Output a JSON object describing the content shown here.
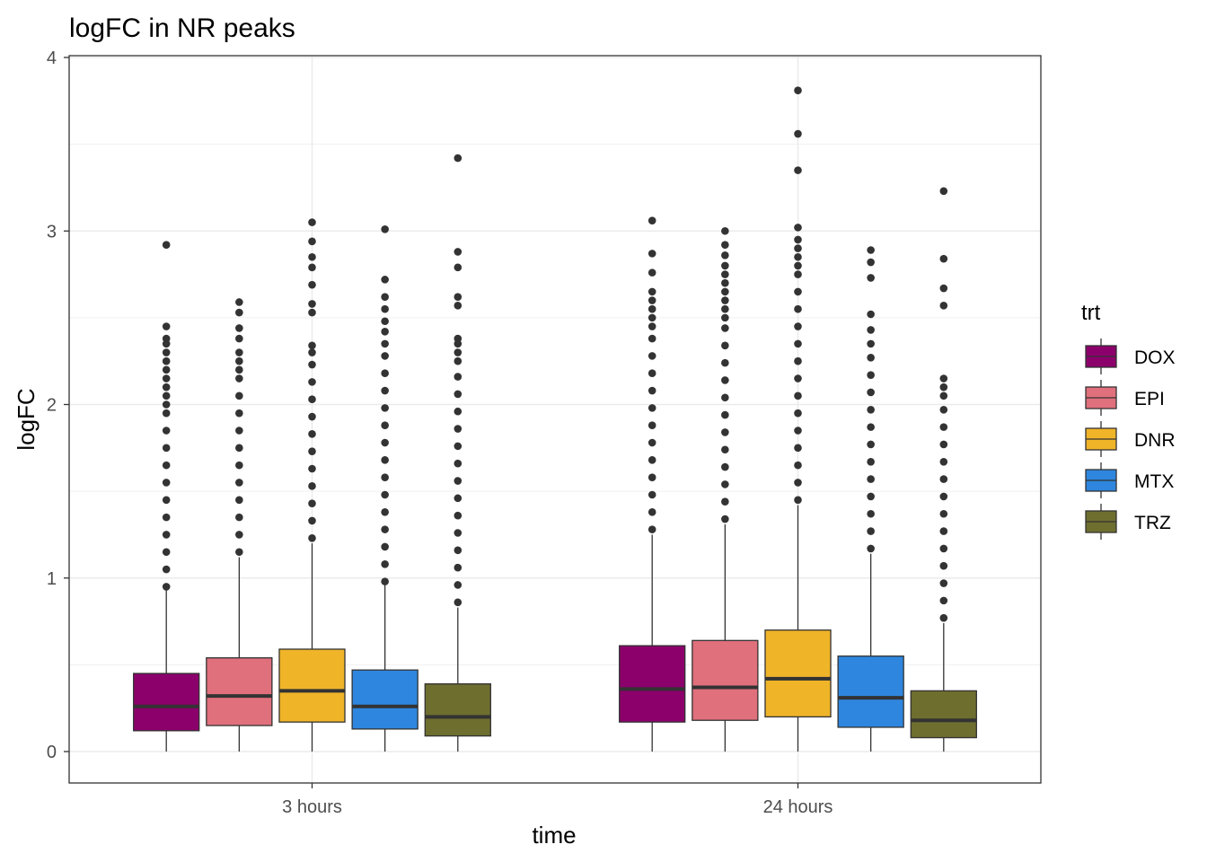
{
  "chart_data": {
    "type": "boxplot",
    "title": "logFC in NR peaks",
    "xlabel": "time",
    "ylabel": "logFC",
    "ylim": [
      -0.18,
      4
    ],
    "y_ticks": [
      0,
      1,
      2,
      3,
      4
    ],
    "grid": true,
    "legend": {
      "title": "trt",
      "position": "right"
    },
    "categories": [
      "3 hours",
      "24 hours"
    ],
    "series": [
      {
        "name": "DOX",
        "color": "#8B006B",
        "boxes": [
          {
            "whisker_low": 0,
            "q1": 0.12,
            "median": 0.26,
            "q3": 0.45,
            "whisker_high": 0.93,
            "outliers": [
              0.95,
              1.05,
              1.15,
              1.25,
              1.35,
              1.45,
              1.55,
              1.65,
              1.75,
              1.85,
              1.95,
              2.0,
              2.05,
              2.1,
              2.15,
              2.2,
              2.25,
              2.3,
              2.35,
              2.38,
              2.45,
              2.92
            ]
          },
          {
            "whisker_low": 0,
            "q1": 0.17,
            "median": 0.36,
            "q3": 0.61,
            "whisker_high": 1.25,
            "outliers": [
              1.28,
              1.38,
              1.48,
              1.58,
              1.68,
              1.78,
              1.88,
              1.98,
              2.08,
              2.18,
              2.28,
              2.38,
              2.45,
              2.5,
              2.55,
              2.6,
              2.65,
              2.76,
              2.87,
              3.06
            ]
          }
        ]
      },
      {
        "name": "EPI",
        "color": "#E0707C",
        "boxes": [
          {
            "whisker_low": 0,
            "q1": 0.15,
            "median": 0.32,
            "q3": 0.54,
            "whisker_high": 1.12,
            "outliers": [
              1.15,
              1.25,
              1.35,
              1.45,
              1.55,
              1.65,
              1.75,
              1.85,
              1.95,
              2.05,
              2.15,
              2.2,
              2.25,
              2.3,
              2.38,
              2.44,
              2.53,
              2.59
            ]
          },
          {
            "whisker_low": 0,
            "q1": 0.18,
            "median": 0.37,
            "q3": 0.64,
            "whisker_high": 1.31,
            "outliers": [
              1.34,
              1.44,
              1.54,
              1.64,
              1.74,
              1.84,
              1.94,
              2.04,
              2.14,
              2.24,
              2.34,
              2.44,
              2.5,
              2.55,
              2.6,
              2.65,
              2.7,
              2.75,
              2.8,
              2.86,
              2.92,
              3.0
            ]
          }
        ]
      },
      {
        "name": "DNR",
        "color": "#F0B429",
        "boxes": [
          {
            "whisker_low": 0,
            "q1": 0.17,
            "median": 0.35,
            "q3": 0.59,
            "whisker_high": 1.2,
            "outliers": [
              1.23,
              1.33,
              1.43,
              1.53,
              1.63,
              1.73,
              1.83,
              1.93,
              2.03,
              2.13,
              2.23,
              2.3,
              2.34,
              2.53,
              2.58,
              2.69,
              2.79,
              2.85,
              2.94,
              3.05
            ]
          },
          {
            "whisker_low": 0,
            "q1": 0.2,
            "median": 0.42,
            "q3": 0.7,
            "whisker_high": 1.42,
            "outliers": [
              1.45,
              1.55,
              1.65,
              1.75,
              1.85,
              1.95,
              2.05,
              2.15,
              2.25,
              2.35,
              2.45,
              2.55,
              2.65,
              2.75,
              2.8,
              2.85,
              2.9,
              2.95,
              3.02,
              3.35,
              3.56,
              3.81
            ]
          }
        ]
      },
      {
        "name": "MTX",
        "color": "#2E86DE",
        "boxes": [
          {
            "whisker_low": 0,
            "q1": 0.13,
            "median": 0.26,
            "q3": 0.47,
            "whisker_high": 0.96,
            "outliers": [
              0.98,
              1.08,
              1.18,
              1.28,
              1.38,
              1.48,
              1.58,
              1.68,
              1.78,
              1.88,
              1.98,
              2.08,
              2.18,
              2.28,
              2.35,
              2.42,
              2.48,
              2.55,
              2.62,
              2.72,
              3.01
            ]
          },
          {
            "whisker_low": 0,
            "q1": 0.14,
            "median": 0.31,
            "q3": 0.55,
            "whisker_high": 1.14,
            "outliers": [
              1.17,
              1.27,
              1.37,
              1.47,
              1.57,
              1.67,
              1.77,
              1.87,
              1.97,
              2.07,
              2.17,
              2.27,
              2.35,
              2.43,
              2.52,
              2.73,
              2.82,
              2.89
            ]
          }
        ]
      },
      {
        "name": "TRZ",
        "color": "#6E6E2F",
        "boxes": [
          {
            "whisker_low": 0,
            "q1": 0.09,
            "median": 0.2,
            "q3": 0.39,
            "whisker_high": 0.83,
            "outliers": [
              0.86,
              0.96,
              1.06,
              1.16,
              1.26,
              1.36,
              1.46,
              1.56,
              1.66,
              1.76,
              1.86,
              1.96,
              2.06,
              2.16,
              2.25,
              2.3,
              2.35,
              2.38,
              2.57,
              2.62,
              2.79,
              2.88,
              3.42
            ]
          },
          {
            "whisker_low": 0,
            "q1": 0.08,
            "median": 0.18,
            "q3": 0.35,
            "whisker_high": 0.74,
            "outliers": [
              0.77,
              0.87,
              0.97,
              1.07,
              1.17,
              1.27,
              1.37,
              1.47,
              1.57,
              1.67,
              1.77,
              1.87,
              1.97,
              2.05,
              2.1,
              2.15,
              2.57,
              2.67,
              2.84,
              3.23
            ]
          }
        ]
      }
    ]
  }
}
